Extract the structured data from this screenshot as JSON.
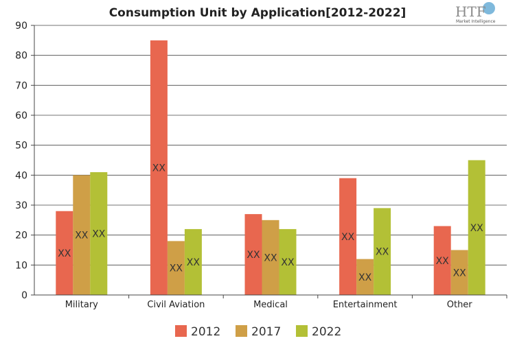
{
  "logo": {
    "name": "HTF",
    "tagline": "Market Intelligence"
  },
  "chart_data": {
    "type": "bar",
    "title": "Consumption Unit by  Application[2012-2022]",
    "categories": [
      "Military",
      "Civil Aviation",
      "Medical",
      "Entertainment",
      "Other"
    ],
    "series": [
      {
        "name": "2012",
        "color": "#e8674f",
        "values": [
          28,
          85,
          27,
          39,
          23
        ],
        "labels": [
          "XX",
          "XX",
          "XX",
          "XX",
          "XX"
        ]
      },
      {
        "name": "2017",
        "color": "#cf9f47",
        "values": [
          40,
          18,
          25,
          12,
          15
        ],
        "labels": [
          "XX",
          "XX",
          "XX",
          "XX",
          "XX"
        ]
      },
      {
        "name": "2022",
        "color": "#b3c036",
        "values": [
          41,
          22,
          22,
          29,
          45
        ],
        "labels": [
          "XX",
          "XX",
          "XX",
          "XX",
          "XX"
        ]
      }
    ],
    "ylim": [
      0,
      90
    ],
    "yticks": [
      0,
      10,
      20,
      30,
      40,
      50,
      60,
      70,
      80,
      90
    ],
    "grid": true,
    "legend_position": "bottom"
  }
}
